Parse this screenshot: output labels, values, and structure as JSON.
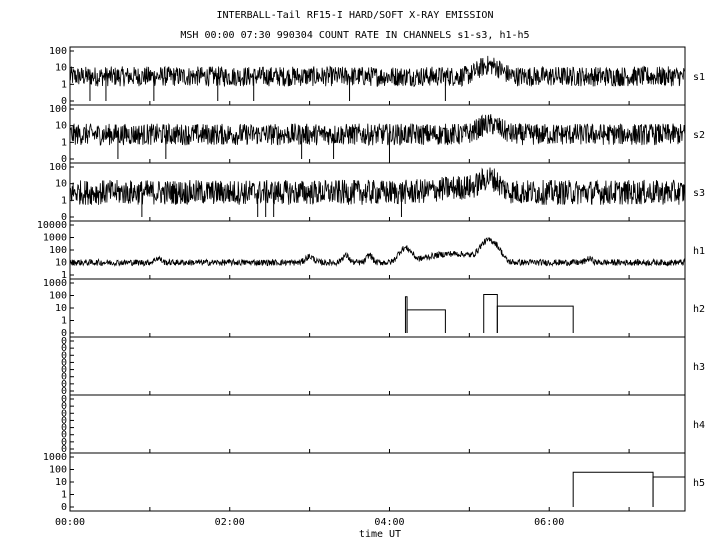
{
  "chart_data": {
    "type": "line",
    "title": "INTERBALL-Tail RF15-I HARD/SOFT X-RAY EMISSION",
    "subtitle": "MSH 00:00 07:30 990304  COUNT RATE IN CHANNELS s1-s3, h1-h5",
    "xlabel": "time UT",
    "x_ticks": [
      "00:00",
      "02:00",
      "04:00",
      "06:00"
    ],
    "xlim_hours": [
      0,
      7.7
    ],
    "grid": false,
    "panels": [
      {
        "name": "s1",
        "y_ticks": [
          "100",
          "10",
          "1",
          "0"
        ],
        "baseline": 3,
        "noise": 1.2,
        "dips": [
          0.25,
          0.45,
          1.05,
          1.85,
          2.3,
          3.5,
          4.7
        ],
        "peaks": [
          {
            "t": 5.25,
            "peak": 14,
            "width": 0.15
          }
        ]
      },
      {
        "name": "s2",
        "y_ticks": [
          "100",
          "10",
          "1",
          "0"
        ],
        "baseline": 3,
        "noise": 1.3,
        "dips": [
          0.6,
          1.2,
          2.9,
          3.3,
          4.0
        ],
        "peaks": [
          {
            "t": 5.25,
            "peak": 12,
            "width": 0.15
          }
        ]
      },
      {
        "name": "s3",
        "y_ticks": [
          "100",
          "10",
          "1",
          "0"
        ],
        "baseline": 3,
        "noise": 1.5,
        "dips": [
          0.9,
          2.35,
          2.45,
          4.15,
          2.55
        ],
        "peaks": [
          {
            "t": 5.25,
            "peak": 20,
            "width": 0.12
          },
          {
            "t": 4.95,
            "peak": 6,
            "width": 0.4
          }
        ]
      },
      {
        "name": "h1",
        "y_ticks": [
          "10000",
          "1000",
          "100",
          "10",
          "1"
        ],
        "baseline": 10,
        "noise": 0.5,
        "dips": [],
        "peaks": [
          {
            "t": 1.1,
            "peak": 22,
            "width": 0.05
          },
          {
            "t": 3.0,
            "peak": 30,
            "width": 0.06
          },
          {
            "t": 3.45,
            "peak": 35,
            "width": 0.05
          },
          {
            "t": 3.75,
            "peak": 40,
            "width": 0.04
          },
          {
            "t": 4.2,
            "peak": 140,
            "width": 0.08
          },
          {
            "t": 4.8,
            "peak": 50,
            "width": 0.35
          },
          {
            "t": 5.25,
            "peak": 600,
            "width": 0.1
          },
          {
            "t": 6.5,
            "peak": 20,
            "width": 0.05
          }
        ]
      },
      {
        "name": "h2",
        "y_ticks": [
          "1000",
          "100",
          "10",
          "1",
          "0"
        ],
        "baseline": 0,
        "noise": 0,
        "dips": [],
        "steps": [
          {
            "start": 4.2,
            "end": 4.22,
            "value": 80
          },
          {
            "start": 4.22,
            "end": 4.7,
            "value": 7
          },
          {
            "start": 5.18,
            "end": 5.35,
            "value": 120
          },
          {
            "start": 5.35,
            "end": 6.3,
            "value": 14
          }
        ]
      },
      {
        "name": "h3",
        "y_ticks": [
          "0",
          "0",
          "0",
          "0",
          "0",
          "0",
          "0",
          "0"
        ],
        "baseline": 0,
        "noise": 0,
        "dips": []
      },
      {
        "name": "h4",
        "y_ticks": [
          "0",
          "0",
          "0",
          "0",
          "0",
          "0",
          "0",
          "0"
        ],
        "baseline": 0,
        "noise": 0,
        "dips": []
      },
      {
        "name": "h5",
        "y_ticks": [
          "1000",
          "100",
          "10",
          "1",
          "0"
        ],
        "baseline": 0,
        "noise": 0,
        "dips": [],
        "steps": [
          {
            "start": 6.3,
            "end": 7.3,
            "value": 60
          },
          {
            "start": 7.3,
            "end": 7.7,
            "value": 25
          }
        ]
      }
    ]
  }
}
